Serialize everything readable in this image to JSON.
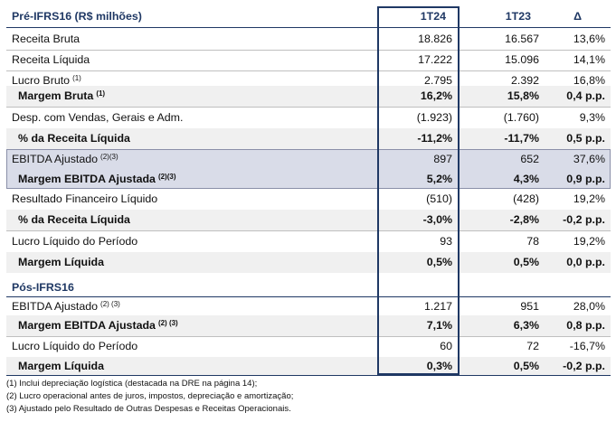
{
  "header": {
    "title": "Pré-IFRS16 (R$ milhões)",
    "col1": "1T24",
    "col2": "1T23",
    "col3": "Δ"
  },
  "rows_pre": [
    {
      "label": "Receita Bruta",
      "sup": "",
      "v1": "18.826",
      "v2": "16.567",
      "v3": "13,6%"
    },
    {
      "label": "Receita Líquida",
      "sup": "",
      "v1": "17.222",
      "v2": "15.096",
      "v3": "14,1%"
    },
    {
      "label": "Lucro Bruto",
      "sup": "(1)",
      "v1": "2.795",
      "v2": "2.392",
      "v3": "16,8%"
    },
    {
      "label": "Margem Bruta",
      "sup": "(1)",
      "v1": "16,2%",
      "v2": "15,8%",
      "v3": "0,4 p.p."
    },
    {
      "label": "Desp. com Vendas, Gerais e Adm.",
      "sup": "",
      "v1": "(1.923)",
      "v2": "(1.760)",
      "v3": "9,3%"
    },
    {
      "label": "% da Receita Líquida",
      "sup": "",
      "v1": "-11,2%",
      "v2": "-11,7%",
      "v3": "0,5 p.p."
    },
    {
      "label": "EBITDA Ajustado",
      "sup": "(2)(3)",
      "v1": "897",
      "v2": "652",
      "v3": "37,6%"
    },
    {
      "label": "Margem EBITDA Ajustada",
      "sup": "(2)(3)",
      "v1": "5,2%",
      "v2": "4,3%",
      "v3": "0,9 p.p."
    },
    {
      "label": "Resultado Financeiro Líquido",
      "sup": "",
      "v1": "(510)",
      "v2": "(428)",
      "v3": "19,2%"
    },
    {
      "label": "% da Receita Líquida",
      "sup": "",
      "v1": "-3,0%",
      "v2": "-2,8%",
      "v3": "-0,2 p.p."
    },
    {
      "label": "Lucro Líquido do Período",
      "sup": "",
      "v1": "93",
      "v2": "78",
      "v3": "19,2%"
    },
    {
      "label": "Margem Líquida",
      "sup": "",
      "v1": "0,5%",
      "v2": "0,5%",
      "v3": "0,0 p.p."
    }
  ],
  "section_pos": "Pós-IFRS16",
  "rows_pos": [
    {
      "label": "EBITDA Ajustado",
      "sup": "(2) (3)",
      "v1": "1.217",
      "v2": "951",
      "v3": "28,0%"
    },
    {
      "label": "Margem EBITDA Ajustada",
      "sup": "(2) (3)",
      "v1": "7,1%",
      "v2": "6,3%",
      "v3": "0,8 p.p."
    },
    {
      "label": "Lucro Líquido do Período",
      "sup": "",
      "v1": "60",
      "v2": "72",
      "v3": "-16,7%"
    },
    {
      "label": "Margem Líquida",
      "sup": "",
      "v1": "0,3%",
      "v2": "0,5%",
      "v3": "-0,2 p.p."
    }
  ],
  "footnotes": [
    "(1) Inclui depreciação logística (destacada na DRE na página 14);",
    "(2) Lucro operacional antes de juros, impostos, depreciação e amortização;",
    "(3) Ajustado pelo Resultado de Outras Despesas e Receitas Operacionais."
  ]
}
